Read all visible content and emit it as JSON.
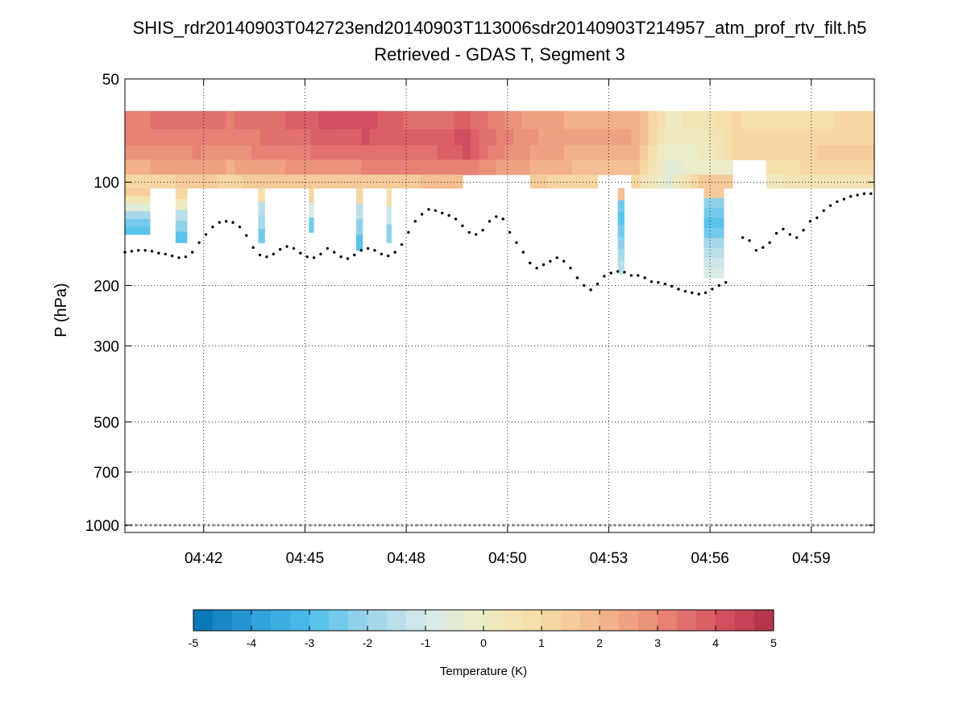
{
  "chart_data": {
    "type": "heatmap",
    "title": "SHIS_rdr20140903T042723end20140903T113006sdr20140903T214957_atm_prof_rtv_filt.h5",
    "subtitle": "Retrieved - GDAS T, Segment 3",
    "xlabel": "",
    "ylabel": "P (hPa)",
    "y_scale": "log",
    "y_reversed": true,
    "ylim": [
      50,
      1050
    ],
    "xlim_minutes": [
      40.0,
      62.2
    ],
    "x_ticks": [
      {
        "minute": 42.333,
        "label": "04:42"
      },
      {
        "minute": 45.333,
        "label": "04:45"
      },
      {
        "minute": 48.333,
        "label": "04:48"
      },
      {
        "minute": 51.333,
        "label": "04:50"
      },
      {
        "minute": 54.333,
        "label": "04:53"
      },
      {
        "minute": 57.333,
        "label": "04:56"
      },
      {
        "minute": 60.333,
        "label": "04:59"
      }
    ],
    "y_ticks": [
      {
        "value": 50,
        "label": "50"
      },
      {
        "value": 100,
        "label": "100"
      },
      {
        "value": 200,
        "label": "200"
      },
      {
        "value": 300,
        "label": "300"
      },
      {
        "value": 500,
        "label": "500"
      },
      {
        "value": 700,
        "label": "700"
      },
      {
        "value": 1000,
        "label": "1000"
      }
    ],
    "grid": true,
    "colorbar": {
      "label": "Temperature (K)",
      "min": -5,
      "max": 5,
      "ticks": [
        "-5",
        "-4",
        "-3",
        "-2",
        "-1",
        "0",
        "1",
        "2",
        "3",
        "4",
        "5"
      ],
      "levels": 30,
      "colors": [
        "#0571b0",
        "#2a9cd9",
        "#4dbfec",
        "#9dd4ea",
        "#d6e9ea",
        "#eeecc4",
        "#f6dca6",
        "#f4b98e",
        "#e98a77",
        "#d85664",
        "#b12e4a"
      ]
    },
    "heatmap_rows_hPa": [
      {
        "top": 62,
        "bottom": 70
      },
      {
        "top": 70,
        "bottom": 78
      },
      {
        "top": 78,
        "bottom": 86
      },
      {
        "top": 86,
        "bottom": 95
      },
      {
        "top": 95,
        "bottom": 104
      }
    ],
    "heatmap_columns": [
      {
        "t": 40.0,
        "values": [
          3.2,
          3.0,
          2.7,
          2.2,
          1.2
        ]
      },
      {
        "t": 41.0,
        "values": [
          3.4,
          3.2,
          2.9,
          2.4,
          1.3
        ]
      },
      {
        "t": 42.0,
        "values": [
          3.5,
          3.3,
          3.0,
          2.5,
          1.4
        ]
      },
      {
        "t": 43.0,
        "values": [
          3.3,
          3.1,
          2.8,
          2.3,
          1.3
        ]
      },
      {
        "t": 44.0,
        "values": [
          3.6,
          3.4,
          3.1,
          2.6,
          1.4
        ]
      },
      {
        "t": 45.0,
        "values": [
          3.7,
          3.5,
          3.2,
          2.7,
          1.5
        ]
      },
      {
        "t": 46.0,
        "values": [
          4.1,
          3.9,
          3.5,
          2.9,
          1.6
        ]
      },
      {
        "t": 47.0,
        "values": [
          4.2,
          4.0,
          3.6,
          3.0,
          1.6
        ]
      },
      {
        "t": 48.0,
        "values": [
          3.7,
          3.8,
          3.5,
          3.0,
          1.6
        ]
      },
      {
        "t": 49.0,
        "values": [
          3.5,
          3.7,
          3.6,
          3.1,
          1.7
        ]
      },
      {
        "t": 50.0,
        "values": [
          3.8,
          4.1,
          4.0,
          3.3,
          null
        ]
      },
      {
        "t": 51.0,
        "values": [
          3.0,
          3.1,
          3.0,
          2.6,
          null
        ]
      },
      {
        "t": 52.0,
        "values": [
          2.5,
          2.7,
          2.6,
          2.3,
          1.4
        ]
      },
      {
        "t": 53.0,
        "values": [
          2.3,
          2.4,
          2.3,
          2.0,
          1.2
        ]
      },
      {
        "t": 54.0,
        "values": [
          2.3,
          2.5,
          2.3,
          1.9,
          null
        ]
      },
      {
        "t": 55.0,
        "values": [
          2.2,
          2.3,
          2.1,
          1.7,
          1.0
        ]
      },
      {
        "t": 56.0,
        "values": [
          0.3,
          0.0,
          -0.3,
          -0.4,
          -0.5
        ]
      },
      {
        "t": 57.0,
        "values": [
          0.4,
          0.2,
          0.0,
          -0.2,
          1.6
        ]
      },
      {
        "t": 58.0,
        "values": [
          1.0,
          1.1,
          1.3,
          null,
          null
        ]
      },
      {
        "t": 59.0,
        "values": [
          0.8,
          1.0,
          1.2,
          0.9,
          0.3
        ]
      },
      {
        "t": 60.0,
        "values": [
          0.9,
          1.1,
          1.3,
          1.0,
          0.4
        ]
      },
      {
        "t": 61.0,
        "values": [
          1.0,
          1.2,
          1.4,
          1.1,
          0.5
        ]
      }
    ],
    "cold_streaks": [
      {
        "t0": 40.0,
        "t1": 40.75,
        "p_top": 104,
        "p_bottom": 142,
        "values": [
          1.4,
          0.6,
          -0.5,
          -1.7,
          -2.6,
          -3.0
        ]
      },
      {
        "t0": 41.5,
        "t1": 41.85,
        "p_top": 104,
        "p_bottom": 150,
        "values": [
          1.2,
          0.2,
          -1.4,
          -2.3,
          -2.7
        ]
      },
      {
        "t0": 43.95,
        "t1": 44.15,
        "p_top": 104,
        "p_bottom": 150,
        "values": [
          0.8,
          -1.5,
          -2.0,
          -2.5
        ]
      },
      {
        "t0": 45.45,
        "t1": 45.6,
        "p_top": 104,
        "p_bottom": 140,
        "values": [
          1.0,
          -1.0,
          -2.4
        ]
      },
      {
        "t0": 46.85,
        "t1": 47.05,
        "p_top": 104,
        "p_bottom": 158,
        "values": [
          1.2,
          -1.5,
          -2.3,
          -2.8
        ]
      },
      {
        "t0": 47.75,
        "t1": 47.9,
        "p_top": 104,
        "p_bottom": 150,
        "values": [
          0.8,
          -1.2,
          -2.3
        ]
      },
      {
        "t0": 54.6,
        "t1": 54.8,
        "p_top": 104,
        "p_bottom": 185,
        "values": [
          1.8,
          -2.4,
          -2.8,
          -2.6,
          -2.2,
          -1.9,
          -1.4
        ]
      },
      {
        "t0": 57.15,
        "t1": 57.75,
        "p_top": 104,
        "p_bottom": 190,
        "values": [
          1.6,
          -2.2,
          -2.6,
          -2.7,
          -2.4,
          -2.0,
          -1.6,
          -1.2,
          -0.9
        ]
      }
    ],
    "tropopause_series": {
      "name": "tropopause pressure (hPa)",
      "segments": [
        [
          [
            40.0,
            160
          ],
          [
            40.2,
            159
          ],
          [
            40.4,
            158
          ],
          [
            40.6,
            158
          ],
          [
            40.8,
            159
          ],
          [
            41.0,
            161
          ],
          [
            41.2,
            162
          ],
          [
            41.4,
            164
          ],
          [
            41.6,
            166
          ],
          [
            41.8,
            165
          ],
          [
            42.0,
            160
          ],
          [
            42.2,
            150
          ],
          [
            42.4,
            142
          ],
          [
            42.6,
            135
          ],
          [
            42.8,
            131
          ],
          [
            43.0,
            130
          ],
          [
            43.2,
            131
          ],
          [
            43.4,
            135
          ],
          [
            43.6,
            143
          ],
          [
            43.8,
            155
          ],
          [
            44.0,
            163
          ],
          [
            44.2,
            165
          ],
          [
            44.4,
            162
          ],
          [
            44.6,
            157
          ],
          [
            44.8,
            154
          ],
          [
            45.0,
            156
          ],
          [
            45.2,
            161
          ],
          [
            45.4,
            165
          ],
          [
            45.6,
            166
          ],
          [
            45.8,
            162
          ],
          [
            46.0,
            156
          ],
          [
            46.2,
            160
          ],
          [
            46.4,
            165
          ],
          [
            46.6,
            167
          ],
          [
            46.8,
            163
          ],
          [
            47.0,
            158
          ],
          [
            47.2,
            156
          ],
          [
            47.4,
            158
          ],
          [
            47.6,
            162
          ],
          [
            47.8,
            164
          ],
          [
            48.0,
            160
          ],
          [
            48.2,
            152
          ],
          [
            48.4,
            140
          ],
          [
            48.6,
            130
          ],
          [
            48.8,
            124
          ],
          [
            49.0,
            120
          ],
          [
            49.2,
            121
          ],
          [
            49.4,
            123
          ],
          [
            49.6,
            125
          ],
          [
            49.8,
            128
          ],
          [
            50.0,
            134
          ],
          [
            50.2,
            140
          ],
          [
            50.4,
            142
          ],
          [
            50.6,
            138
          ],
          [
            50.8,
            130
          ],
          [
            51.0,
            126
          ],
          [
            51.2,
            128
          ],
          [
            51.4,
            140
          ],
          [
            51.6,
            150
          ],
          [
            51.8,
            160
          ],
          [
            52.0,
            172
          ],
          [
            52.2,
            178
          ],
          [
            52.4,
            174
          ],
          [
            52.6,
            170
          ],
          [
            52.8,
            166
          ],
          [
            53.0,
            170
          ],
          [
            53.2,
            178
          ],
          [
            53.4,
            190
          ],
          [
            53.6,
            200
          ],
          [
            53.8,
            206
          ],
          [
            54.0,
            198
          ],
          [
            54.2,
            188
          ],
          [
            54.4,
            184
          ],
          [
            54.6,
            182
          ],
          [
            54.8,
            183
          ],
          [
            55.0,
            187
          ],
          [
            55.2,
            187
          ],
          [
            55.4,
            190
          ],
          [
            55.6,
            195
          ],
          [
            55.8,
            196
          ],
          [
            56.0,
            198
          ],
          [
            56.2,
            201
          ],
          [
            56.4,
            205
          ],
          [
            56.6,
            208
          ],
          [
            56.8,
            210
          ],
          [
            57.0,
            212
          ],
          [
            57.2,
            210
          ],
          [
            57.4,
            205
          ],
          [
            57.6,
            200
          ],
          [
            57.8,
            196
          ]
        ],
        [
          [
            58.3,
            145
          ],
          [
            58.5,
            148
          ],
          [
            58.7,
            158
          ],
          [
            58.9,
            155
          ],
          [
            59.1,
            150
          ],
          [
            59.3,
            141
          ],
          [
            59.5,
            137
          ],
          [
            59.7,
            142
          ],
          [
            59.9,
            145
          ],
          [
            60.1,
            138
          ],
          [
            60.3,
            130
          ],
          [
            60.5,
            127
          ],
          [
            60.7,
            121
          ],
          [
            60.9,
            117
          ],
          [
            61.1,
            114
          ],
          [
            61.3,
            112
          ],
          [
            61.5,
            110
          ],
          [
            61.7,
            109
          ],
          [
            61.9,
            108
          ],
          [
            62.1,
            108
          ]
        ]
      ]
    },
    "surface_series": {
      "name": "surface level",
      "pressure": 1000
    }
  }
}
